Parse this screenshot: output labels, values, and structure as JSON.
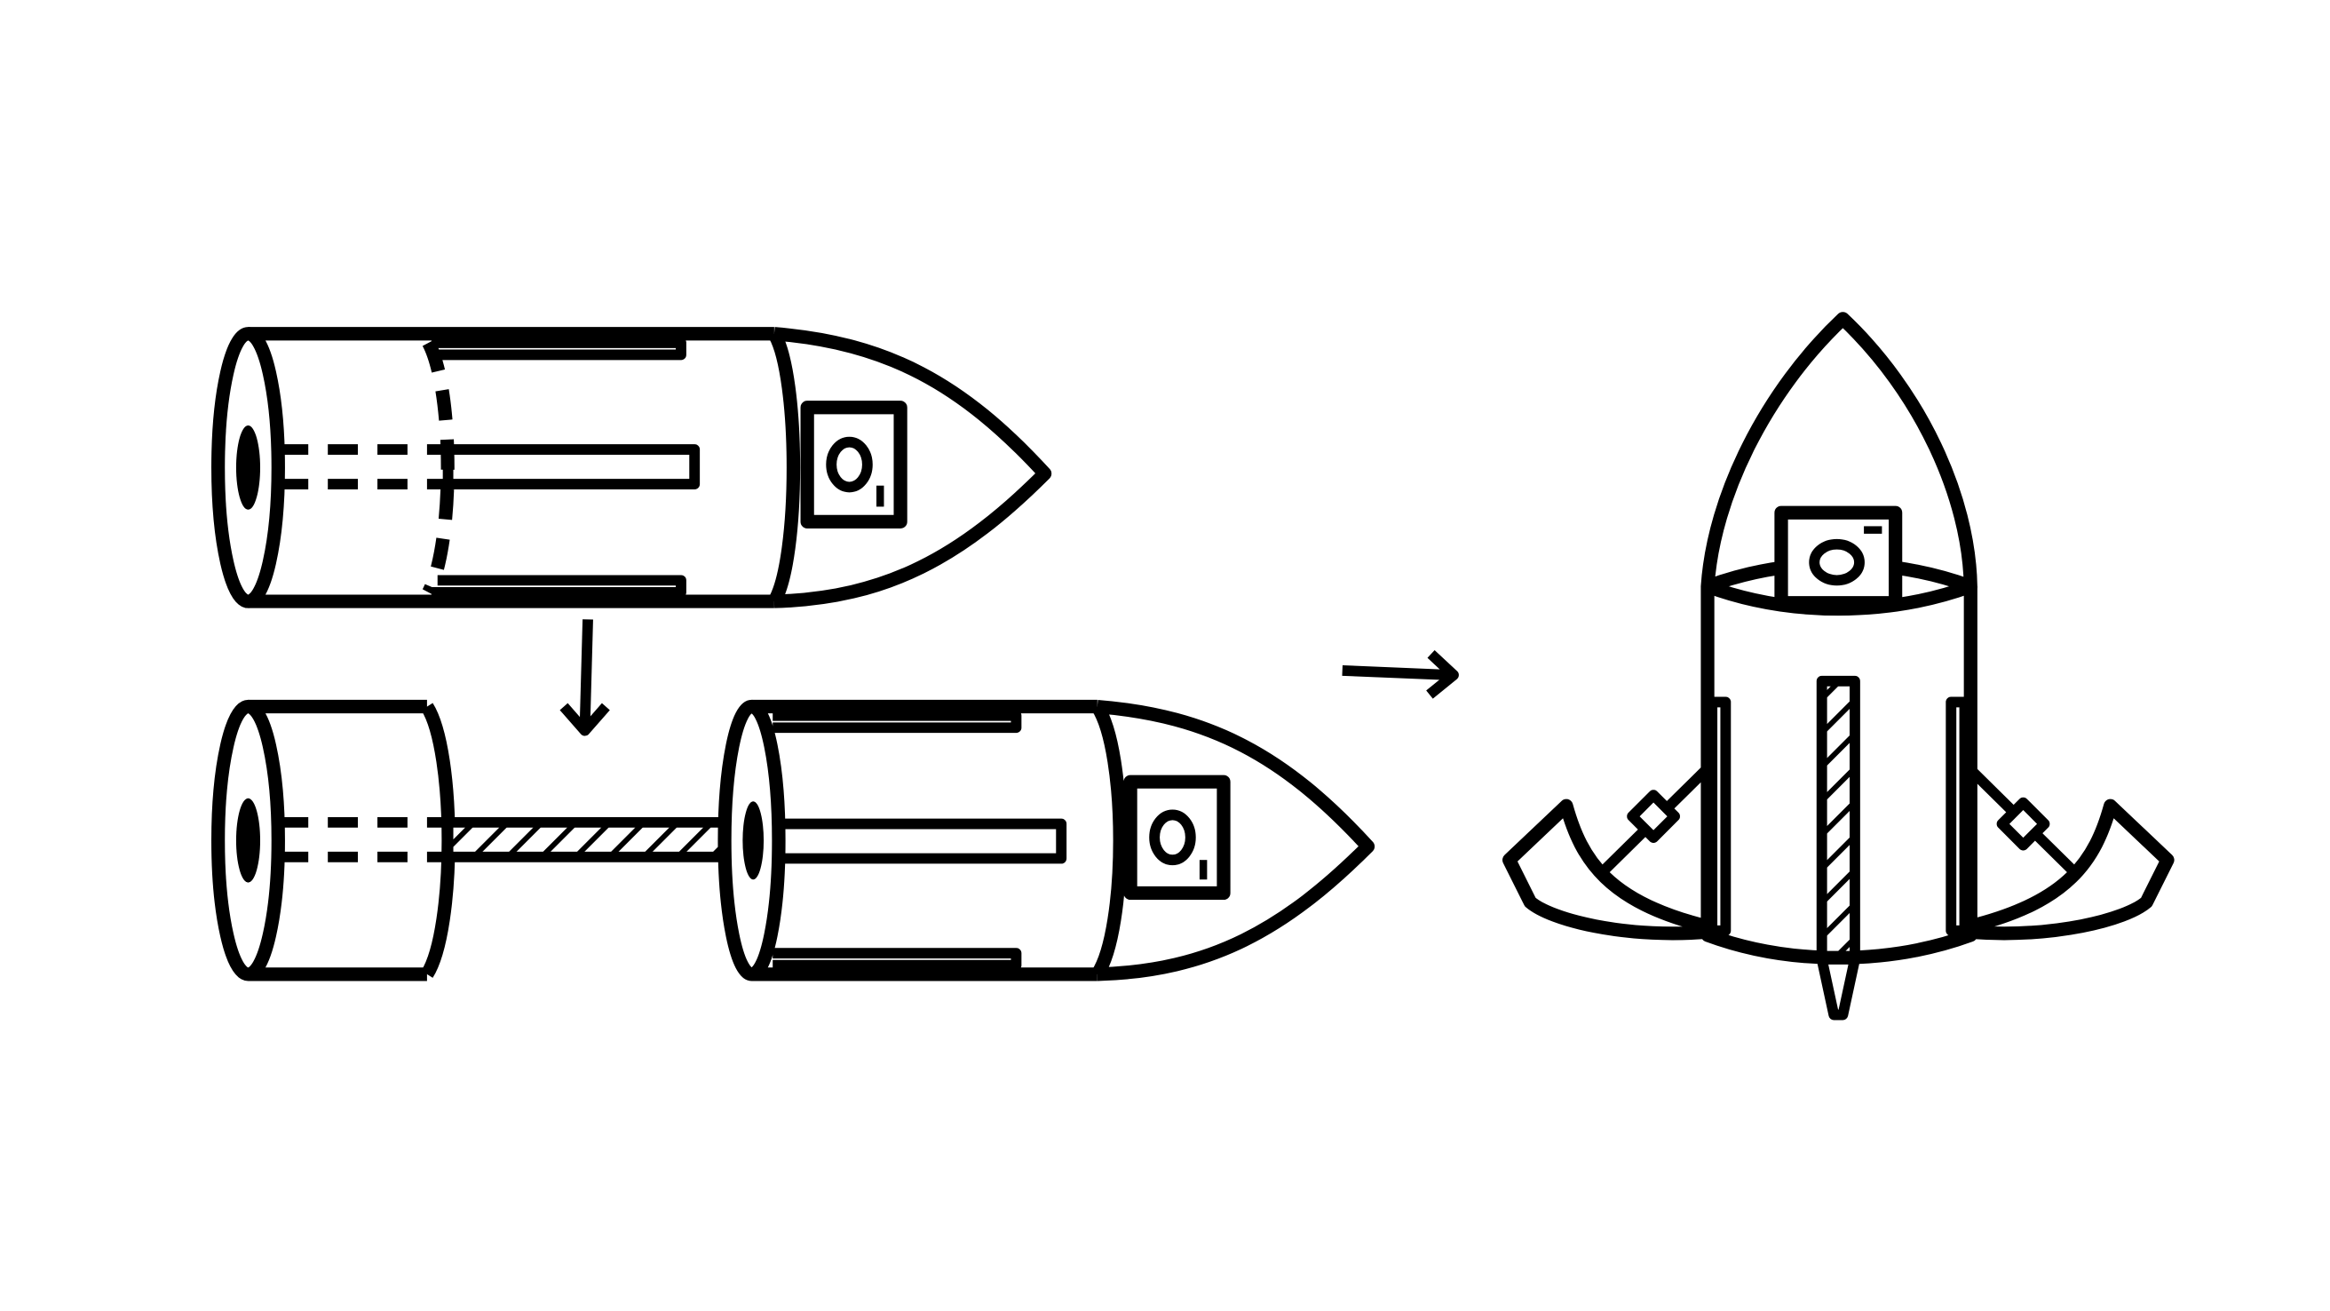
{
  "diagram": {
    "ink_color": "#000000",
    "background_color": "#ffffff",
    "components": [
      "horizontal-rocket-assembled",
      "rocket-separated-with-rod",
      "vertical-rocket-landed"
    ],
    "arrows": [
      {
        "name": "down-arrow",
        "direction": "down"
      },
      {
        "name": "right-arrow",
        "direction": "right"
      }
    ]
  }
}
